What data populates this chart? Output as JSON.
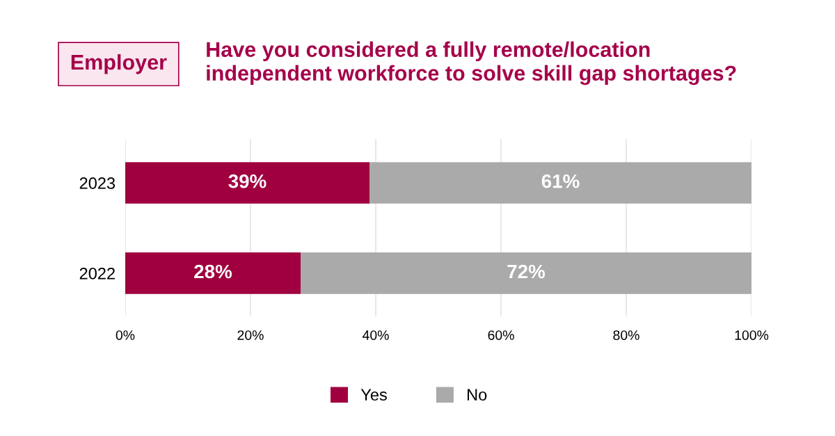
{
  "chart_data": {
    "type": "bar",
    "orientation": "horizontal",
    "stacked": true,
    "title": "Have you considered a fully remote/location\nindependent workforce to solve skill gap shortages?",
    "annotations": [
      "Employer"
    ],
    "categories": [
      "2023",
      "2022"
    ],
    "series": [
      {
        "name": "Yes",
        "color": "#a0003f",
        "values": [
          39,
          28
        ],
        "value_labels": [
          "39%",
          "28%"
        ]
      },
      {
        "name": "No",
        "color": "#aaaaaa",
        "values": [
          61,
          72
        ],
        "value_labels": [
          "61%",
          "72%"
        ]
      }
    ],
    "xlim": [
      0,
      100
    ],
    "xticks": [
      {
        "value": 0,
        "label": "0%"
      },
      {
        "value": 20,
        "label": "20%"
      },
      {
        "value": 40,
        "label": "40%"
      },
      {
        "value": 60,
        "label": "60%"
      },
      {
        "value": 80,
        "label": "80%"
      },
      {
        "value": 100,
        "label": "100%"
      }
    ],
    "grid": "x",
    "legend": "bottom"
  }
}
